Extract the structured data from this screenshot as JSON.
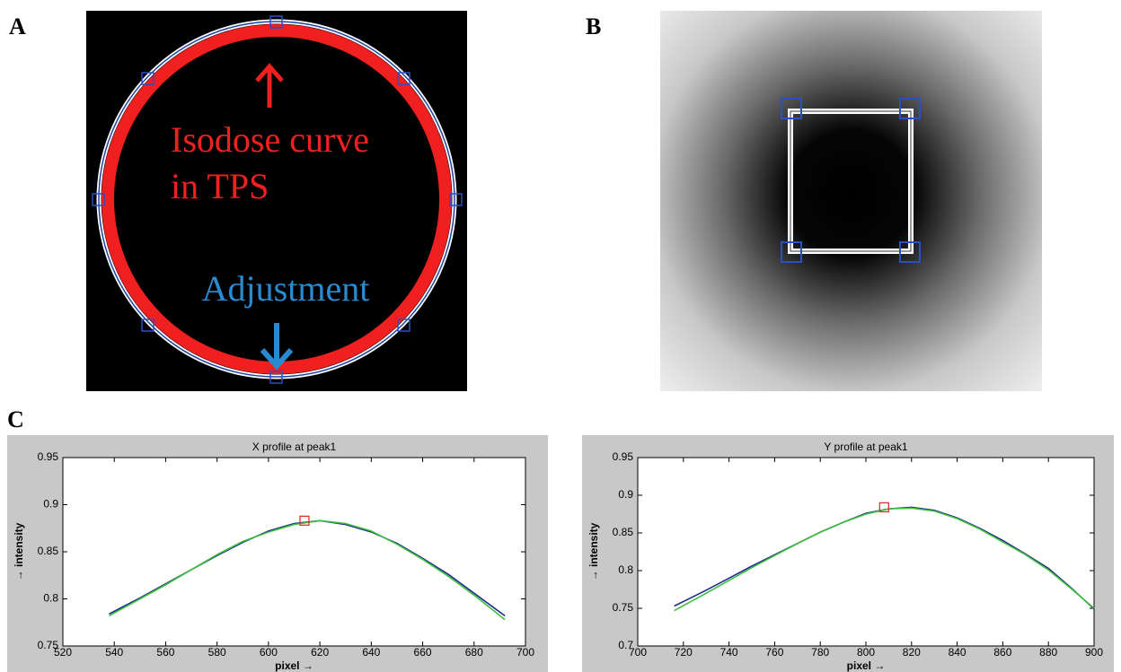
{
  "panels": {
    "a": {
      "label": "A",
      "annotations": [
        "Isodose curve",
        "in TPS",
        "Adjustment"
      ]
    },
    "b": {
      "label": "B"
    },
    "c": {
      "label": "C"
    }
  },
  "chart_data": [
    {
      "type": "line",
      "title": "X profile at peak1",
      "x_label": "pixel →",
      "y_label": "→ intensity",
      "x": [
        538,
        550,
        560,
        570,
        580,
        590,
        600,
        610,
        620,
        630,
        640,
        650,
        660,
        670,
        680,
        692
      ],
      "series": [
        {
          "color": "#1f2a8c",
          "values": [
            0.784,
            0.801,
            0.816,
            0.831,
            0.846,
            0.86,
            0.872,
            0.88,
            0.883,
            0.879,
            0.871,
            0.859,
            0.843,
            0.826,
            0.806,
            0.782
          ]
        },
        {
          "color": "#3cbf3c",
          "values": [
            0.782,
            0.8,
            0.815,
            0.831,
            0.847,
            0.861,
            0.871,
            0.879,
            0.883,
            0.88,
            0.872,
            0.858,
            0.842,
            0.824,
            0.804,
            0.778
          ]
        }
      ],
      "peak": {
        "x": 614,
        "y": 0.883,
        "color": "#e03030"
      },
      "xlim": [
        520,
        700
      ],
      "xticks": [
        520,
        540,
        560,
        580,
        600,
        620,
        640,
        660,
        680,
        700
      ],
      "ylim": [
        0.75,
        0.95
      ],
      "yticks": [
        0.75,
        0.8,
        0.85,
        0.9,
        0.95
      ]
    },
    {
      "type": "line",
      "title": "Y profile at peak1",
      "x_label": "pixel →",
      "y_label": "→ intensity",
      "x": [
        716,
        730,
        740,
        750,
        760,
        770,
        780,
        790,
        800,
        810,
        820,
        830,
        840,
        850,
        860,
        870,
        880,
        890,
        900
      ],
      "series": [
        {
          "color": "#1f2a8c",
          "values": [
            0.753,
            0.774,
            0.79,
            0.806,
            0.821,
            0.836,
            0.851,
            0.864,
            0.876,
            0.882,
            0.884,
            0.88,
            0.87,
            0.856,
            0.84,
            0.822,
            0.803,
            0.777,
            0.749
          ]
        },
        {
          "color": "#3cbf3c",
          "values": [
            0.747,
            0.77,
            0.787,
            0.804,
            0.82,
            0.836,
            0.851,
            0.864,
            0.875,
            0.882,
            0.883,
            0.879,
            0.869,
            0.855,
            0.838,
            0.821,
            0.801,
            0.776,
            0.75
          ]
        }
      ],
      "peak": {
        "x": 808,
        "y": 0.884,
        "color": "#e03030"
      },
      "xlim": [
        700,
        900
      ],
      "xticks": [
        700,
        720,
        740,
        760,
        780,
        800,
        820,
        840,
        860,
        880,
        900
      ],
      "ylim": [
        0.7,
        0.95
      ],
      "yticks": [
        0.7,
        0.75,
        0.8,
        0.85,
        0.9,
        0.95
      ]
    }
  ]
}
